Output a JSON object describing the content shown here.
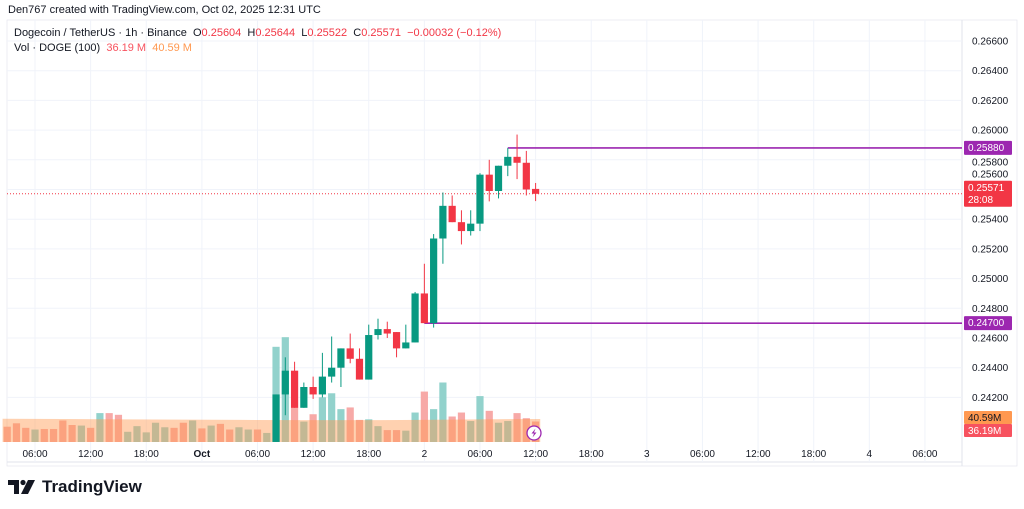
{
  "credit": "Den767 created with TradingView.com, Oct 02, 2025 12:31 UTC",
  "legend": {
    "symbol": "Dogecoin / TetherUS · 1h · Binance",
    "o_label": "O",
    "o": "0.25604",
    "h_label": "H",
    "h": "0.25644",
    "l_label": "L",
    "l": "0.25522",
    "c_label": "C",
    "c": "0.25571",
    "change": "−0.00032 (−0.12%)",
    "vol_title": "Vol · DOGE (100)",
    "vol": "36.19 M",
    "vol_ma": "40.59 M"
  },
  "colors": {
    "up": "#089981",
    "down": "#f23645",
    "level_line": "#9c27b0",
    "vol_ma": "#ff9850",
    "grid": "#f0f3fa"
  },
  "price_axis": {
    "ticks": [
      "0.26600",
      "0.26400",
      "0.26200",
      "0.26000",
      "0.25800",
      "0.25600",
      "0.25400",
      "0.25200",
      "0.25000",
      "0.24800",
      "0.24600",
      "0.24400",
      "0.24200"
    ],
    "current_price": "0.25571",
    "countdown": "28:08",
    "vol_ma_label": "40.59M",
    "vol_label": "36.19M"
  },
  "time_axis": {
    "labels": [
      {
        "t": "2025-09-30 06:00",
        "text": "06:00"
      },
      {
        "t": "2025-09-30 12:00",
        "text": "12:00"
      },
      {
        "t": "2025-09-30 18:00",
        "text": "18:00"
      },
      {
        "t": "2025-10-01 00:00",
        "text": "Oct",
        "bold": true
      },
      {
        "t": "2025-10-01 06:00",
        "text": "06:00"
      },
      {
        "t": "2025-10-01 12:00",
        "text": "12:00"
      },
      {
        "t": "2025-10-01 18:00",
        "text": "18:00"
      },
      {
        "t": "2025-10-02 00:00",
        "text": "2"
      },
      {
        "t": "2025-10-02 06:00",
        "text": "06:00"
      },
      {
        "t": "2025-10-02 12:00",
        "text": "12:00"
      },
      {
        "t": "2025-10-02 18:00",
        "text": "18:00"
      },
      {
        "t": "2025-10-03 00:00",
        "text": "3"
      },
      {
        "t": "2025-10-03 06:00",
        "text": "06:00"
      },
      {
        "t": "2025-10-03 12:00",
        "text": "12:00"
      },
      {
        "t": "2025-10-03 18:00",
        "text": "18:00"
      },
      {
        "t": "2025-10-04 00:00",
        "text": "4"
      },
      {
        "t": "2025-10-04 06:00",
        "text": "06:00"
      }
    ]
  },
  "levels": [
    {
      "price": "0.25880",
      "from": "2025-10-02 09:00"
    },
    {
      "price": "0.24700",
      "from": "2025-10-02 00:00"
    }
  ],
  "chart_data": {
    "type": "candlestick",
    "price_range": [
      0.2385,
      0.267
    ],
    "candles_start": "2025-10-01 08:00",
    "interval_hours": 1,
    "candles": [
      [
        0.239,
        0.2422,
        0.239,
        0.2422,
        168
      ],
      [
        0.2422,
        0.2447,
        0.2408,
        0.2438,
        185
      ],
      [
        0.2438,
        0.2444,
        0.2413,
        0.2413,
        61
      ],
      [
        0.2413,
        0.243,
        0.2413,
        0.2427,
        36
      ],
      [
        0.2427,
        0.2434,
        0.2419,
        0.2422,
        49
      ],
      [
        0.2422,
        0.245,
        0.242,
        0.2434,
        79
      ],
      [
        0.2434,
        0.2461,
        0.243,
        0.244,
        86
      ],
      [
        0.244,
        0.2453,
        0.2427,
        0.2453,
        58
      ],
      [
        0.2453,
        0.2463,
        0.2443,
        0.2446,
        61
      ],
      [
        0.2446,
        0.2453,
        0.2432,
        0.2432,
        39
      ],
      [
        0.2432,
        0.2469,
        0.2432,
        0.2462,
        40
      ],
      [
        0.2462,
        0.2473,
        0.2459,
        0.2466,
        28
      ],
      [
        0.2466,
        0.2471,
        0.246,
        0.2463,
        21
      ],
      [
        0.2464,
        0.2464,
        0.2447,
        0.2453,
        21
      ],
      [
        0.2453,
        0.2469,
        0.2453,
        0.2457,
        20
      ],
      [
        0.2457,
        0.2491,
        0.2457,
        0.249,
        52
      ],
      [
        0.249,
        0.251,
        0.247,
        0.247,
        89
      ],
      [
        0.247,
        0.253,
        0.2467,
        0.2527,
        58
      ],
      [
        0.2527,
        0.2558,
        0.251,
        0.2549,
        105
      ],
      [
        0.2549,
        0.2556,
        0.2538,
        0.2538,
        45
      ],
      [
        0.2538,
        0.2546,
        0.2523,
        0.2532,
        52
      ],
      [
        0.2532,
        0.2546,
        0.2529,
        0.2537,
        37
      ],
      [
        0.2537,
        0.2571,
        0.2532,
        0.257,
        81
      ],
      [
        0.257,
        0.258,
        0.2552,
        0.2559,
        55
      ],
      [
        0.2559,
        0.2576,
        0.2554,
        0.2576,
        34
      ],
      [
        0.2576,
        0.2588,
        0.2569,
        0.2582,
        37
      ],
      [
        0.2582,
        0.2597,
        0.2567,
        0.2578,
        51
      ],
      [
        0.2578,
        0.2586,
        0.2556,
        0.256,
        42
      ],
      [
        0.25604,
        0.25644,
        0.25522,
        0.25571,
        36.19
      ]
    ],
    "candle_fields": [
      "open",
      "high",
      "low",
      "close",
      "volume_M"
    ],
    "earlier_volume_start": "2025-09-30 03:00",
    "earlier_volumes": [
      [
        27,
        "down"
      ],
      [
        33,
        "down"
      ],
      [
        25,
        "down"
      ],
      [
        22,
        "up"
      ],
      [
        23,
        "down"
      ],
      [
        23,
        "down"
      ],
      [
        38,
        "down"
      ],
      [
        30,
        "down"
      ],
      [
        29,
        "up"
      ],
      [
        25,
        "down"
      ],
      [
        51,
        "up"
      ],
      [
        51,
        "down"
      ],
      [
        48,
        "down"
      ],
      [
        18,
        "up"
      ],
      [
        28,
        "up"
      ],
      [
        17,
        "up"
      ],
      [
        34,
        "up"
      ],
      [
        26,
        "up"
      ],
      [
        25,
        "down"
      ],
      [
        34,
        "down"
      ],
      [
        38,
        "up"
      ],
      [
        24,
        "down"
      ],
      [
        29,
        "up"
      ],
      [
        32,
        "down"
      ],
      [
        22,
        "down"
      ],
      [
        26,
        "up"
      ],
      [
        22,
        "up"
      ],
      [
        22,
        "down"
      ],
      [
        16,
        "up"
      ]
    ],
    "volume_ma_100": [
      41,
      40.5,
      40,
      39.5,
      39,
      38.5,
      38.5,
      39,
      40,
      40.59
    ]
  }
}
